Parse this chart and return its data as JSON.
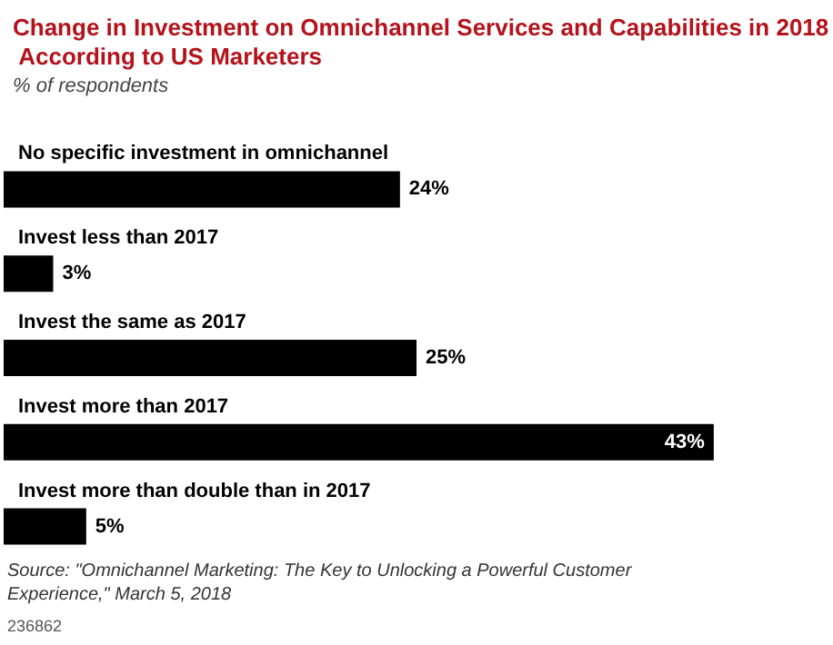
{
  "chart_data": {
    "type": "bar",
    "orientation": "horizontal",
    "title": "Change in Investment on Omnichannel Services and Capabilities in 2018 According to US Marketers",
    "subtitle": "% of respondents",
    "categories": [
      "No specific investment in omnichannel",
      "Invest less than 2017",
      "Invest the same as 2017",
      "Invest more than 2017",
      "Invest more than double than in 2017"
    ],
    "values": [
      24,
      3,
      25,
      43,
      5
    ],
    "value_labels": [
      "24%",
      "3%",
      "25%",
      "43%",
      "5%"
    ],
    "color": "#000000",
    "annotations": [
      "Source: \"Omnichannel Marketing: The Key to Unlocking a Powerful Customer Experience,\" March 5, 2018",
      "236862"
    ]
  }
}
